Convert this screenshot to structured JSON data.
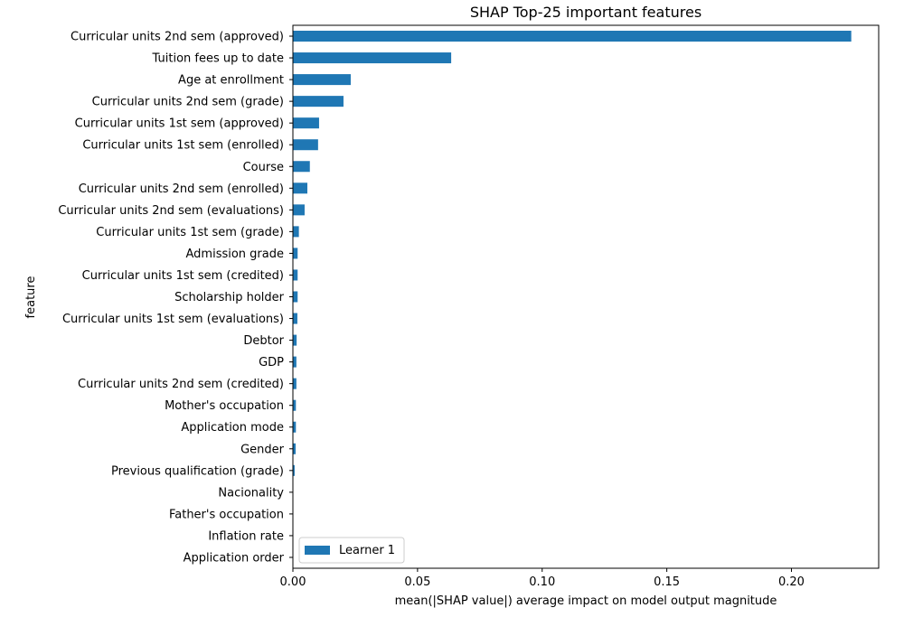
{
  "chart_data": {
    "type": "bar",
    "orientation": "horizontal",
    "title": "SHAP Top-25 important features",
    "xlabel": "mean(|SHAP value|) average impact on model output magnitude",
    "ylabel": "feature",
    "xlim": [
      0.0,
      0.235
    ],
    "xticks": [
      0.0,
      0.05,
      0.1,
      0.15,
      0.2
    ],
    "xtick_labels": [
      "0.00",
      "0.05",
      "0.10",
      "0.15",
      "0.20"
    ],
    "grid": false,
    "legend_position": "lower-left",
    "bar_color": "#1f77b4",
    "categories": [
      "Curricular units 2nd sem (approved)",
      "Tuition fees up to date",
      "Age at enrollment",
      "Curricular units 2nd sem (grade)",
      "Curricular units 1st sem (approved)",
      "Curricular units 1st sem (enrolled)",
      "Course",
      "Curricular units 2nd sem (enrolled)",
      "Curricular units 2nd sem (evaluations)",
      "Curricular units 1st sem (grade)",
      "Admission grade",
      "Curricular units 1st sem (credited)",
      "Scholarship holder",
      "Curricular units 1st sem (evaluations)",
      "Debtor",
      "GDP",
      "Curricular units 2nd sem (credited)",
      "Mother's occupation",
      "Application mode",
      "Gender",
      "Previous qualification (grade)",
      "Nacionality",
      "Father's occupation",
      "Inflation rate",
      "Application order"
    ],
    "series": [
      {
        "name": "Learner 1",
        "values": [
          0.224,
          0.0635,
          0.0232,
          0.0203,
          0.0105,
          0.0101,
          0.0068,
          0.0058,
          0.0047,
          0.0024,
          0.0019,
          0.0019,
          0.0019,
          0.0018,
          0.0015,
          0.0014,
          0.0014,
          0.0012,
          0.0012,
          0.0011,
          0.0007,
          0.0001,
          0.0001,
          0.0001,
          0.0001
        ]
      }
    ]
  }
}
